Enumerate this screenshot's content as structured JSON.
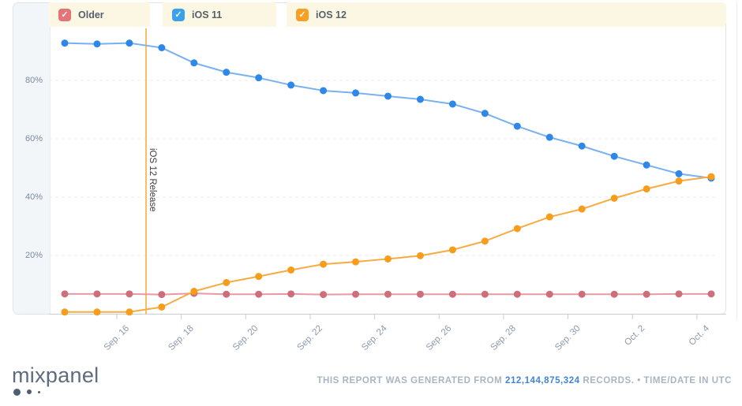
{
  "legend": {
    "items": [
      {
        "label": "Older",
        "color": "#e4737a",
        "checked": true
      },
      {
        "label": "iOS 11",
        "color": "#3ca1ec",
        "checked": true
      },
      {
        "label": "iOS 12",
        "color": "#f7a022",
        "checked": true
      }
    ],
    "check_glyph": "✓"
  },
  "chart_data": {
    "type": "line",
    "title": "",
    "xlabel": "",
    "ylabel": "",
    "ylim": [
      0,
      100
    ],
    "grid": "horizontal-dashed",
    "legend_position": "top",
    "x": [
      "Sep. 14",
      "Sep. 15",
      "Sep. 16",
      "Sep. 17",
      "Sep. 18",
      "Sep. 19",
      "Sep. 20",
      "Sep. 21",
      "Sep. 22",
      "Sep. 23",
      "Sep. 24",
      "Sep. 25",
      "Sep. 26",
      "Sep. 27",
      "Sep. 28",
      "Sep. 29",
      "Sep. 30",
      "Oct. 1",
      "Oct. 2",
      "Oct. 3",
      "Oct. 4"
    ],
    "x_tick_labels": [
      "Sep. 16",
      "Sep. 18",
      "Sep. 20",
      "Sep. 22",
      "Sep. 24",
      "Sep. 26",
      "Sep. 28",
      "Sep. 30",
      "Oct. 2",
      "Oct. 4"
    ],
    "y_ticks": [
      20,
      40,
      60,
      80
    ],
    "y_tick_labels": [
      "20%",
      "40%",
      "60%",
      "80%"
    ],
    "annotation": {
      "label": "iOS 12 Release",
      "x": "Sep. 17"
    },
    "series": [
      {
        "name": "iOS 11",
        "dot_color": "#2f87e8",
        "line_color": "#79b1f0",
        "values": [
          92.8,
          92.5,
          92.8,
          91.2,
          86.0,
          82.8,
          80.9,
          78.4,
          76.5,
          75.7,
          74.6,
          73.5,
          71.9,
          68.7,
          64.3,
          60.5,
          57.5,
          54.0,
          51.0,
          48.0,
          46.5
        ]
      },
      {
        "name": "Older",
        "dot_color": "#ce6e7b",
        "line_color": "#e59aa4",
        "values": [
          6.8,
          6.8,
          6.8,
          6.6,
          7.0,
          6.7,
          6.7,
          6.8,
          6.6,
          6.7,
          6.7,
          6.7,
          6.7,
          6.7,
          6.7,
          6.7,
          6.7,
          6.7,
          6.7,
          6.8,
          6.8
        ]
      },
      {
        "name": "iOS 12",
        "dot_color": "#f89c1c",
        "line_color": "#f7ab41",
        "values": [
          0.6,
          0.6,
          0.6,
          2.3,
          7.7,
          10.7,
          12.8,
          15.0,
          17.0,
          17.8,
          18.8,
          19.9,
          21.9,
          24.9,
          29.2,
          33.2,
          35.9,
          39.6,
          42.8,
          45.5,
          47.0
        ]
      }
    ],
    "annotation_line_color": "#f5a623"
  },
  "footer": {
    "logo_text": "mixpanel",
    "report_prefix": "THIS REPORT WAS GENERATED FROM",
    "records_count": "212,144,875,324",
    "report_suffix": "RECORDS.",
    "separator": "•",
    "timezone_note": "TIME/DATE IN UTC"
  }
}
